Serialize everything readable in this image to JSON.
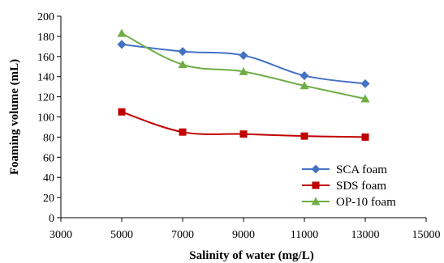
{
  "chart_data": {
    "type": "line",
    "title": "",
    "xlabel": "Salinity of water (mg/L)",
    "ylabel": "Foaming volume (mL)",
    "xlim": [
      3000,
      15000
    ],
    "ylim": [
      0,
      200
    ],
    "xticks": [
      3000,
      5000,
      7000,
      9000,
      11000,
      13000,
      15000
    ],
    "yticks": [
      0,
      20,
      40,
      60,
      80,
      100,
      120,
      140,
      160,
      180,
      200
    ],
    "grid": false,
    "legend_position": "bottom-right",
    "series": [
      {
        "name": "SCA foam",
        "marker": "diamond",
        "color": "#4472C4",
        "x": [
          5000,
          7000,
          9000,
          11000,
          13000
        ],
        "y": [
          172,
          165,
          161,
          141,
          133
        ]
      },
      {
        "name": "SDS foam",
        "marker": "square",
        "color": "#C00000",
        "x": [
          5000,
          7000,
          9000,
          11000,
          13000
        ],
        "y": [
          105,
          85,
          83,
          81,
          80
        ]
      },
      {
        "name": "OP-10 foam",
        "marker": "triangle",
        "color": "#70AD47",
        "x": [
          5000,
          7000,
          9000,
          11000,
          13000
        ],
        "y": [
          183,
          152,
          145,
          131,
          118
        ]
      }
    ]
  }
}
